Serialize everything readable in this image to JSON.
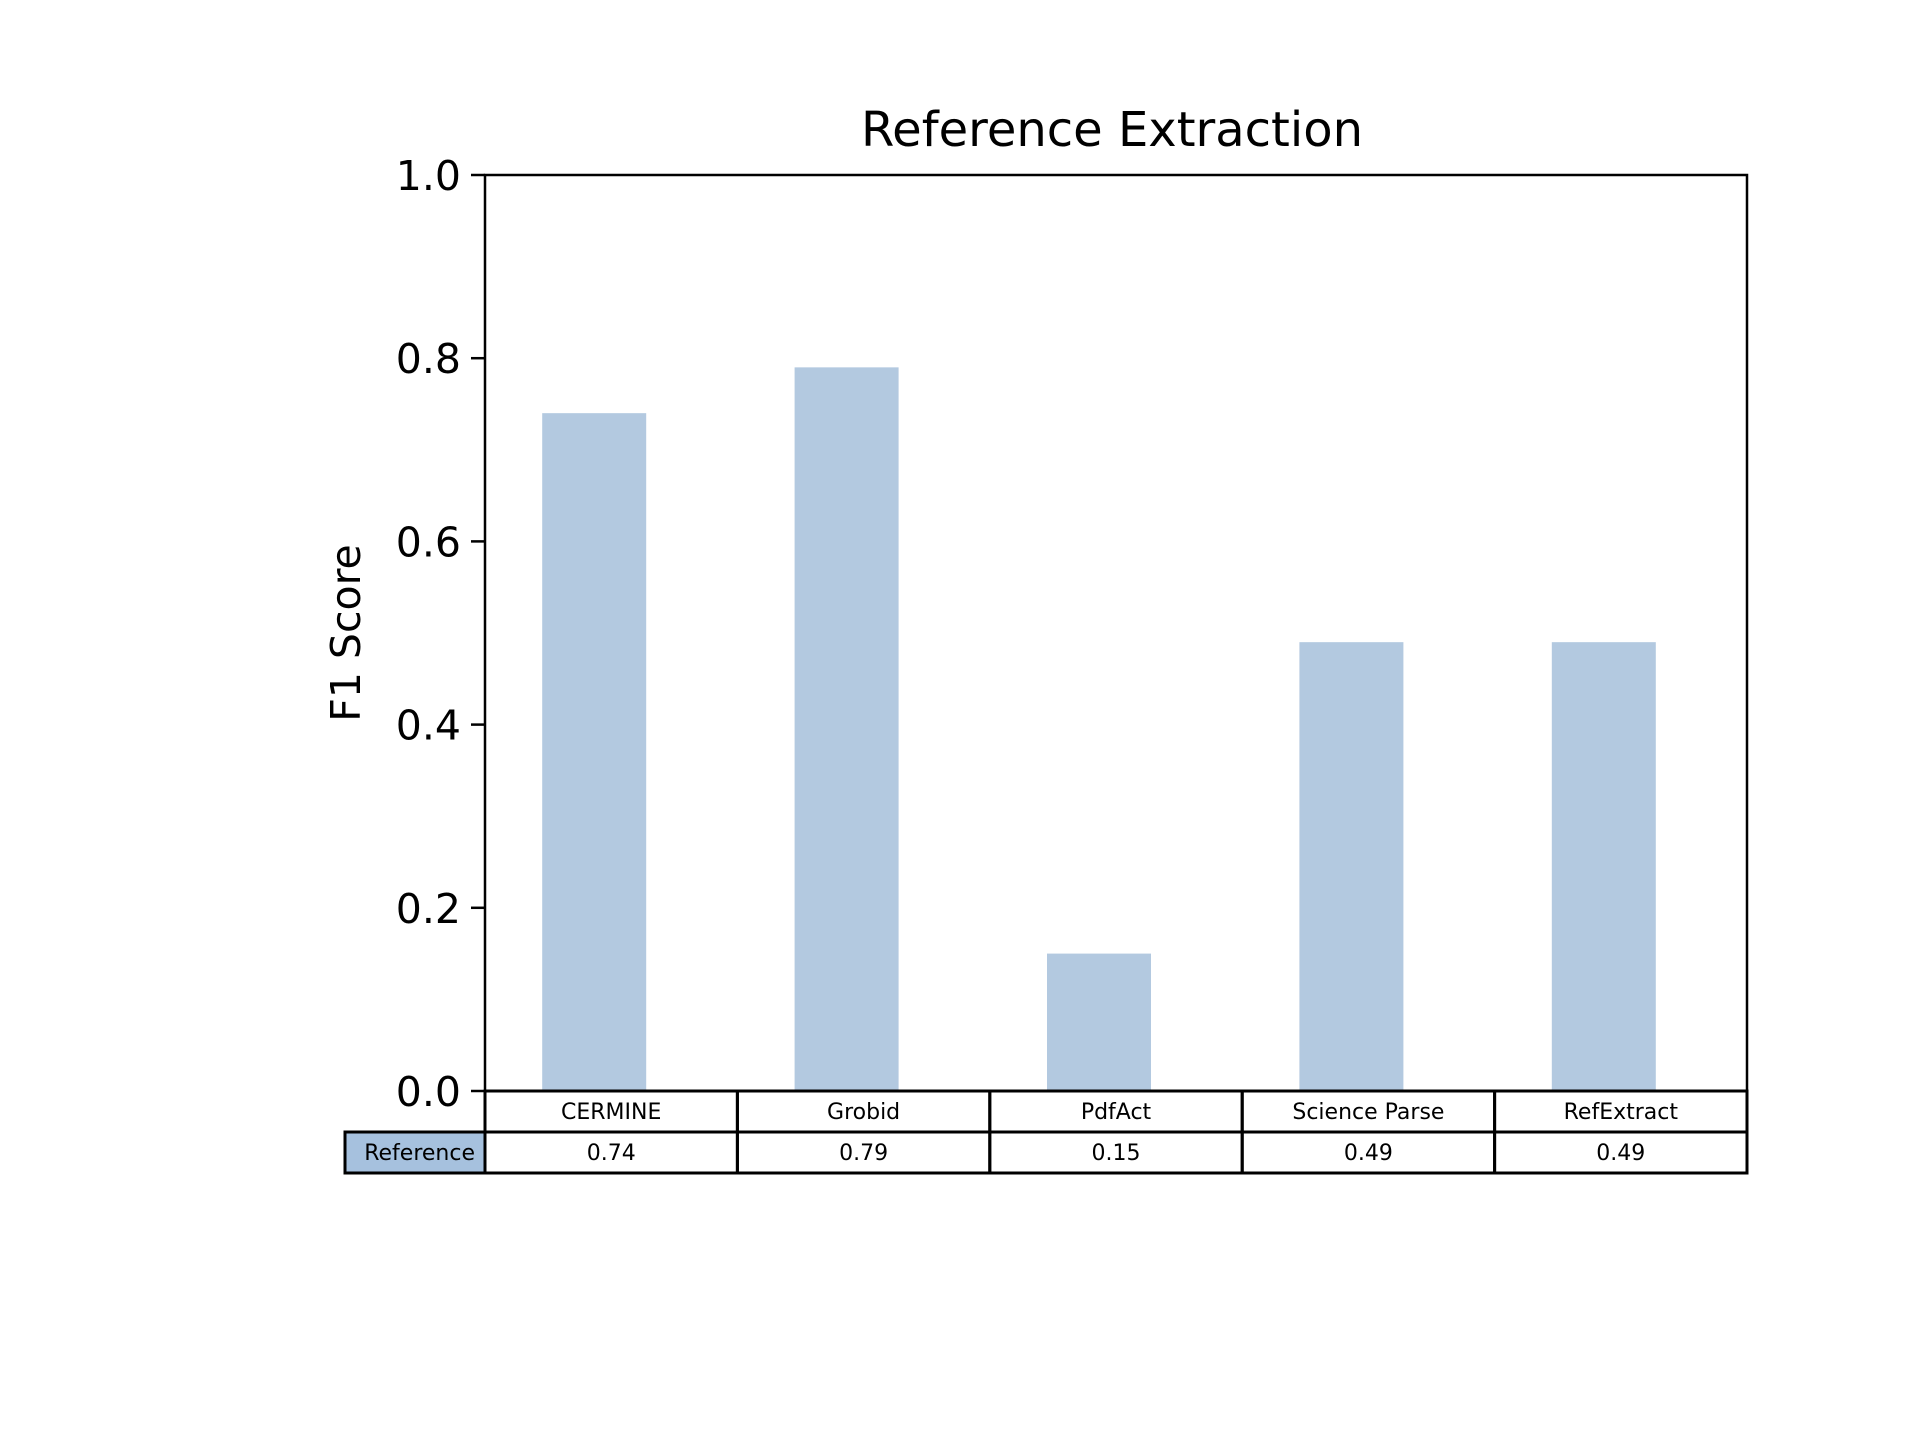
{
  "chart_data": {
    "type": "bar",
    "title": "Reference Extraction",
    "xlabel": "",
    "ylabel": "F1 Score",
    "ylim": [
      0,
      1.0
    ],
    "y_ticks": [
      "0.0",
      "0.2",
      "0.4",
      "0.6",
      "0.8",
      "1.0"
    ],
    "categories": [
      "CERMINE",
      "Grobid",
      "PdfAct",
      "Science Parse",
      "RefExtract"
    ],
    "series": [
      {
        "name": "Reference",
        "values": [
          0.74,
          0.79,
          0.15,
          0.49,
          0.49
        ],
        "labels": [
          "0.74",
          "0.79",
          "0.15",
          "0.49",
          "0.49"
        ],
        "color": "#b3c9e0",
        "legend_color": "#a6c1de"
      }
    ],
    "grid": false,
    "table_below": true
  }
}
